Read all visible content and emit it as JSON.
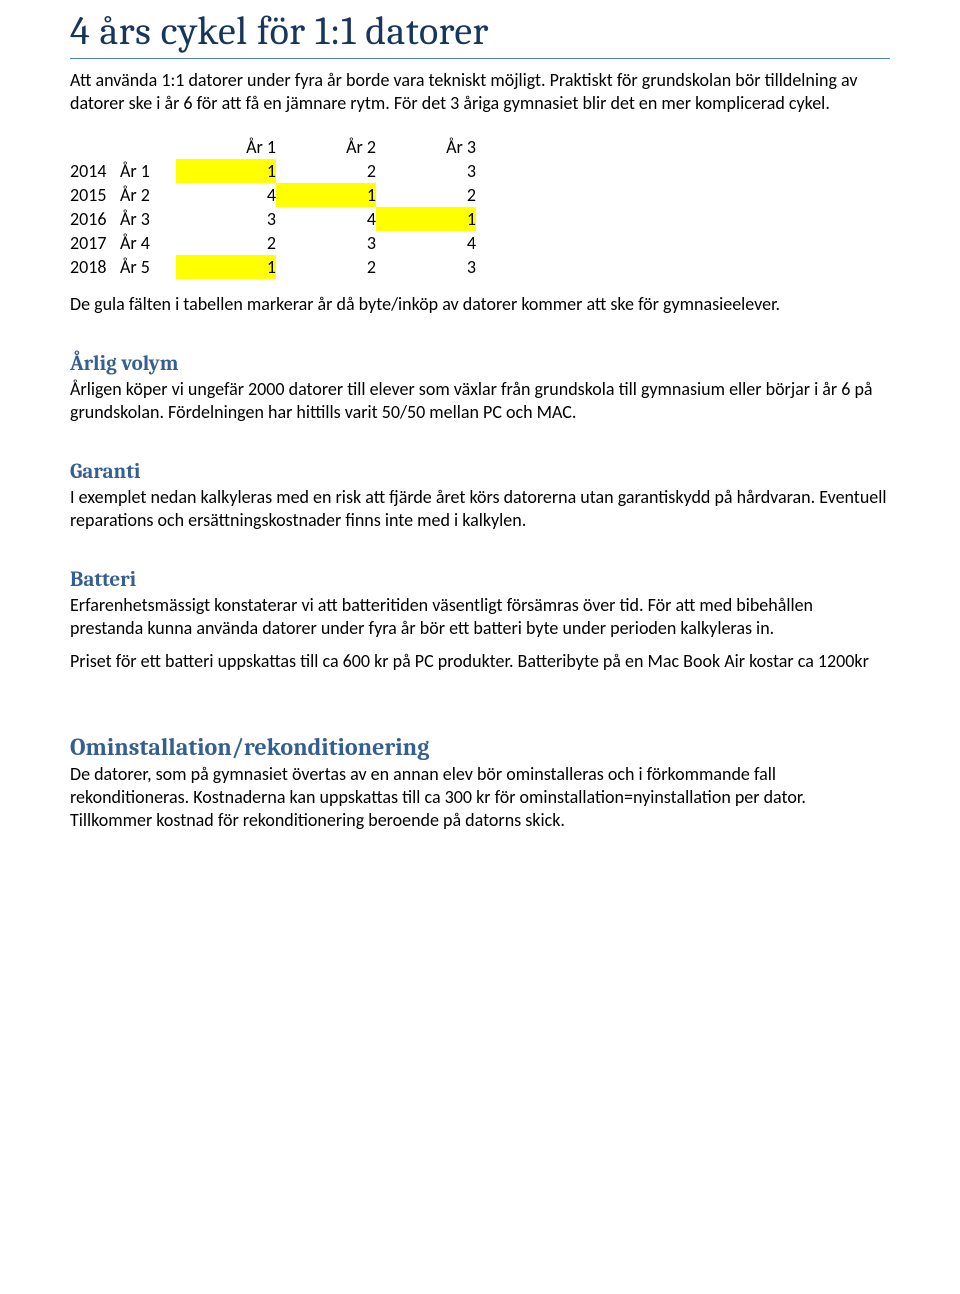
{
  "colors": {
    "title_color": "#17365D",
    "title_underline": "#4F81BD",
    "heading_color": "#365F91",
    "body_color": "#000000",
    "highlight": "#FFFF00",
    "background": "#FFFFFF"
  },
  "typography": {
    "title_font": "Cambria",
    "body_font": "Calibri",
    "title_size_pt": 30,
    "heading_size_pt": 16,
    "heading_lg_size_pt": 18,
    "body_size_pt": 13.5
  },
  "title": "4 års cykel för 1:1 datorer",
  "intro": "Att använda 1:1 datorer under fyra år borde vara tekniskt möjligt. Praktiskt för grundskolan bör tilldelning av datorer ske i år 6 för att få en jämnare rytm. För det 3 åriga gymnasiet blir det en mer komplicerad cykel.",
  "table": {
    "type": "table",
    "columns": [
      "År 1",
      "År 2",
      "År 3"
    ],
    "rows": [
      {
        "year": "2014",
        "label": "År 1",
        "cells": [
          {
            "v": "1",
            "hl": true
          },
          {
            "v": "2",
            "hl": false
          },
          {
            "v": "3",
            "hl": false
          }
        ]
      },
      {
        "year": "2015",
        "label": "År 2",
        "cells": [
          {
            "v": "4",
            "hl": false
          },
          {
            "v": "1",
            "hl": true
          },
          {
            "v": "2",
            "hl": false
          }
        ]
      },
      {
        "year": "2016",
        "label": "År 3",
        "cells": [
          {
            "v": "3",
            "hl": false
          },
          {
            "v": "4",
            "hl": false
          },
          {
            "v": "1",
            "hl": true
          }
        ]
      },
      {
        "year": "2017",
        "label": "År 4",
        "cells": [
          {
            "v": "2",
            "hl": false
          },
          {
            "v": "3",
            "hl": false
          },
          {
            "v": "4",
            "hl": false
          }
        ]
      },
      {
        "year": "2018",
        "label": "År 5",
        "cells": [
          {
            "v": "1",
            "hl": true
          },
          {
            "v": "2",
            "hl": false
          },
          {
            "v": "3",
            "hl": false
          }
        ]
      }
    ]
  },
  "table_caption": "De gula fälten i tabellen markerar år då byte/inköp av datorer kommer att ske för gymnasieelever.",
  "sections": [
    {
      "heading": "Årlig volym",
      "size": "normal",
      "body": "Årligen köper vi ungefär 2000 datorer till elever som växlar från grundskola till gymnasium eller börjar i år 6 på grundskolan. Fördelningen har hittills varit 50/50 mellan PC och MAC."
    },
    {
      "heading": "Garanti",
      "size": "normal",
      "body": "I exemplet nedan kalkyleras med en risk att fjärde året körs datorerna utan garantiskydd på hårdvaran. Eventuell reparations och ersättningskostnader finns inte med i kalkylen."
    },
    {
      "heading": "Batteri",
      "size": "normal",
      "body": "Erfarenhetsmässigt konstaterar vi att batteritiden väsentligt försämras över tid. För att med bibehållen prestanda kunna använda datorer under fyra år bör ett batteri byte under perioden kalkyleras in.\nPriset för ett batteri uppskattas till ca 600 kr på PC produkter. Batteribyte på en Mac Book Air kostar ca 1200kr"
    },
    {
      "heading": "Ominstallation/rekonditionering",
      "size": "large",
      "body": "De datorer, som på gymnasiet övertas av en annan elev bör ominstalleras och i förkommande fall rekonditioneras. Kostnaderna kan uppskattas till ca 300 kr för ominstallation=nyinstallation per dator. Tillkommer kostnad för rekonditionering beroende på datorns skick."
    }
  ]
}
